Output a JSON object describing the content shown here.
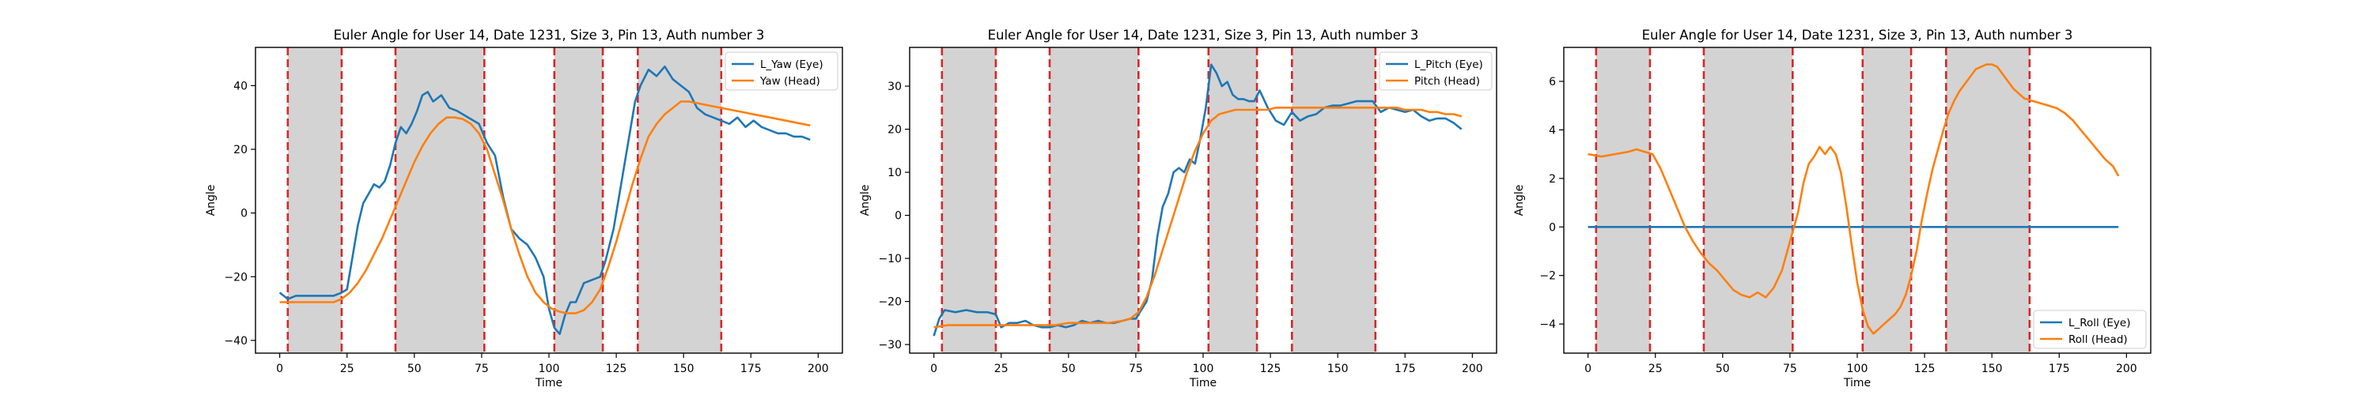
{
  "colors": {
    "eye": "#1f77b4",
    "head": "#ff7f0e",
    "shade": "#d3d3d3",
    "boundary": "#d62728"
  },
  "chart_data": [
    {
      "type": "line",
      "title": "Euler Angle for User 14, Date 1231, Size 3, Pin 13, Auth number 3",
      "xlabel": "Time",
      "ylabel": "Angle",
      "xlim": [
        -9,
        209
      ],
      "ylim": [
        -44,
        52
      ],
      "xticks": [
        0,
        25,
        50,
        75,
        100,
        125,
        150,
        175,
        200
      ],
      "yticks": [
        -40,
        -20,
        0,
        20,
        40
      ],
      "legend_position": "top-right",
      "shaded_intervals": [
        [
          3,
          23
        ],
        [
          43,
          76
        ],
        [
          102,
          120
        ],
        [
          133,
          164
        ]
      ],
      "series": [
        {
          "name": "L_Yaw (Eye)",
          "color": "#1f77b4",
          "x": [
            0,
            3,
            6,
            10,
            15,
            20,
            23,
            25,
            27,
            29,
            31,
            33,
            35,
            37,
            39,
            41,
            43,
            45,
            47,
            49,
            51,
            53,
            55,
            57,
            60,
            63,
            66,
            70,
            74,
            77,
            80,
            83,
            86,
            89,
            92,
            95,
            98,
            100,
            102,
            104,
            106,
            108,
            110,
            113,
            116,
            119,
            121,
            124,
            127,
            130,
            132,
            134,
            137,
            140,
            143,
            146,
            149,
            152,
            155,
            158,
            161,
            164,
            167,
            170,
            173,
            176,
            179,
            182,
            185,
            188,
            191,
            194,
            197
          ],
          "y": [
            -25,
            -27,
            -26,
            -26,
            -26,
            -26,
            -25,
            -24,
            -14,
            -4,
            3,
            6,
            9,
            8,
            10,
            15,
            22,
            27,
            25,
            28,
            32,
            37,
            38,
            35,
            37,
            33,
            32,
            30,
            28,
            22,
            18,
            5,
            -5,
            -8,
            -10,
            -14,
            -20,
            -30,
            -36,
            -38,
            -32,
            -28,
            -28,
            -22,
            -21,
            -20,
            -15,
            -5,
            10,
            25,
            35,
            40,
            45,
            43,
            46,
            42,
            40,
            38,
            33,
            31,
            30,
            29,
            28,
            30,
            27,
            29,
            27,
            26,
            25,
            25,
            24,
            24,
            23
          ]
        },
        {
          "name": "Yaw (Head)",
          "color": "#ff7f0e",
          "x": [
            0,
            5,
            10,
            15,
            20,
            23,
            26,
            29,
            32,
            35,
            38,
            41,
            44,
            47,
            50,
            53,
            56,
            59,
            62,
            65,
            68,
            71,
            74,
            77,
            80,
            83,
            86,
            89,
            92,
            95,
            98,
            101,
            104,
            107,
            110,
            113,
            116,
            119,
            122,
            125,
            128,
            131,
            134,
            137,
            140,
            143,
            146,
            149,
            152,
            155,
            158,
            161,
            164,
            167,
            170,
            173,
            176,
            179,
            182,
            185,
            188,
            191,
            194,
            197
          ],
          "y": [
            -28,
            -28,
            -28,
            -28,
            -28,
            -27,
            -25,
            -22,
            -18,
            -13,
            -8,
            -2,
            4,
            10,
            16,
            21,
            25,
            28,
            30,
            30,
            29.5,
            28,
            25,
            20,
            12,
            4,
            -5,
            -13,
            -20,
            -25,
            -28,
            -30,
            -31,
            -31.5,
            -31.5,
            -30.5,
            -28,
            -24,
            -17,
            -9,
            0,
            9,
            17,
            24,
            28,
            31,
            33,
            35,
            35,
            34.5,
            34,
            33.5,
            33,
            32.5,
            32,
            31.5,
            31,
            30.5,
            30,
            29.5,
            29,
            28.5,
            28,
            27.5
          ]
        }
      ]
    },
    {
      "type": "line",
      "title": "Euler Angle for User 14, Date 1231, Size 3, Pin 13, Auth number 3",
      "xlabel": "Time",
      "ylabel": "Angle",
      "xlim": [
        -9,
        209
      ],
      "ylim": [
        -32,
        39
      ],
      "xticks": [
        0,
        25,
        50,
        75,
        100,
        125,
        150,
        175,
        200
      ],
      "yticks": [
        -30,
        -20,
        -10,
        0,
        10,
        20,
        30
      ],
      "legend_position": "top-right",
      "shaded_intervals": [
        [
          3,
          23
        ],
        [
          43,
          76
        ],
        [
          102,
          120
        ],
        [
          133,
          164
        ]
      ],
      "series": [
        {
          "name": "L_Pitch (Eye)",
          "color": "#1f77b4",
          "x": [
            0,
            2,
            4,
            8,
            12,
            16,
            20,
            23,
            25,
            28,
            31,
            34,
            37,
            40,
            43,
            46,
            49,
            52,
            55,
            58,
            61,
            64,
            67,
            70,
            73,
            75,
            77,
            79,
            81,
            83,
            85,
            87,
            89,
            91,
            93,
            95,
            97,
            99,
            101,
            103,
            105,
            107,
            109,
            111,
            113,
            115,
            117,
            119,
            121,
            124,
            127,
            130,
            133,
            136,
            139,
            142,
            145,
            148,
            151,
            154,
            157,
            160,
            163,
            166,
            169,
            172,
            175,
            178,
            181,
            184,
            187,
            190,
            193,
            196
          ],
          "y": [
            -28,
            -24,
            -22,
            -22.5,
            -22,
            -22.5,
            -22.5,
            -23,
            -26,
            -25,
            -25,
            -24.5,
            -25.5,
            -26,
            -26,
            -25.5,
            -26,
            -25.5,
            -24.5,
            -25,
            -24.5,
            -25,
            -25,
            -24.5,
            -24,
            -24,
            -22,
            -20,
            -15,
            -5,
            2,
            5,
            10,
            11,
            10,
            13,
            12,
            18,
            25,
            35,
            33,
            30,
            31,
            28,
            27,
            27,
            26.5,
            26.5,
            29,
            25,
            22,
            21,
            24,
            22,
            23,
            23.5,
            25,
            25.5,
            25.5,
            26,
            26.5,
            26.5,
            26.5,
            24,
            25,
            24.5,
            24,
            24.5,
            23,
            22,
            22.5,
            22.5,
            21.5,
            20
          ]
        },
        {
          "name": "Pitch (Head)",
          "color": "#ff7f0e",
          "x": [
            0,
            5,
            10,
            15,
            20,
            25,
            30,
            35,
            40,
            45,
            50,
            55,
            60,
            65,
            70,
            73,
            76,
            79,
            82,
            85,
            88,
            91,
            94,
            97,
            100,
            103,
            106,
            109,
            112,
            115,
            118,
            121,
            124,
            127,
            130,
            133,
            136,
            139,
            142,
            145,
            148,
            151,
            154,
            157,
            160,
            163,
            166,
            169,
            172,
            175,
            178,
            181,
            184,
            187,
            190,
            193,
            196
          ],
          "y": [
            -26,
            -25.5,
            -25.5,
            -25.5,
            -25.5,
            -25.5,
            -25.5,
            -25.5,
            -25.5,
            -25.5,
            -25,
            -25,
            -25,
            -25,
            -24.5,
            -24,
            -22.5,
            -19,
            -14,
            -8,
            -2,
            4,
            10,
            15,
            19,
            22,
            23.5,
            24,
            24.5,
            24.5,
            24.5,
            24.5,
            24.5,
            25,
            25,
            25,
            25,
            25,
            25,
            25,
            25,
            25,
            25,
            25,
            25,
            25,
            25,
            25,
            25,
            24.5,
            24.5,
            24.5,
            24,
            24,
            23.5,
            23.5,
            23
          ]
        }
      ]
    },
    {
      "type": "line",
      "title": "Euler Angle for User 14, Date 1231, Size 3, Pin 13, Auth number 3",
      "xlabel": "Time",
      "ylabel": "Angle",
      "xlim": [
        -9,
        209
      ],
      "ylim": [
        -5.2,
        7.4
      ],
      "xticks": [
        0,
        25,
        50,
        75,
        100,
        125,
        150,
        175,
        200
      ],
      "yticks": [
        -4,
        -2,
        0,
        2,
        4,
        6
      ],
      "legend_position": "bottom-right",
      "shaded_intervals": [
        [
          3,
          23
        ],
        [
          43,
          76
        ],
        [
          102,
          120
        ],
        [
          133,
          164
        ]
      ],
      "series": [
        {
          "name": "L_Roll (Eye)",
          "color": "#1f77b4",
          "x": [
            0,
            197
          ],
          "y": [
            0,
            0
          ]
        },
        {
          "name": "Roll (Head)",
          "color": "#ff7f0e",
          "x": [
            0,
            5,
            10,
            15,
            18,
            21,
            24,
            27,
            30,
            33,
            36,
            39,
            42,
            45,
            48,
            51,
            54,
            57,
            60,
            63,
            66,
            69,
            72,
            75,
            78,
            80,
            82,
            84,
            86,
            88,
            90,
            92,
            94,
            96,
            98,
            100,
            102,
            104,
            106,
            108,
            110,
            112,
            114,
            116,
            118,
            120,
            122,
            124,
            126,
            128,
            130,
            132,
            134,
            136,
            138,
            140,
            142,
            144,
            146,
            148,
            150,
            152,
            154,
            156,
            158,
            160,
            162,
            165,
            168,
            171,
            174,
            177,
            180,
            183,
            186,
            189,
            192,
            195,
            197
          ],
          "y": [
            3.0,
            2.9,
            3.0,
            3.1,
            3.2,
            3.1,
            3.0,
            2.4,
            1.6,
            0.8,
            0.0,
            -0.6,
            -1.1,
            -1.5,
            -1.8,
            -2.2,
            -2.6,
            -2.8,
            -2.9,
            -2.7,
            -2.9,
            -2.5,
            -1.8,
            -0.6,
            0.6,
            1.8,
            2.6,
            2.9,
            3.3,
            3.0,
            3.3,
            3.0,
            2.2,
            0.8,
            -0.8,
            -2.3,
            -3.4,
            -4.1,
            -4.4,
            -4.2,
            -4.0,
            -3.8,
            -3.6,
            -3.3,
            -2.8,
            -2.0,
            -1.0,
            0.3,
            1.4,
            2.4,
            3.2,
            4.0,
            4.7,
            5.2,
            5.6,
            5.9,
            6.2,
            6.5,
            6.6,
            6.7,
            6.7,
            6.6,
            6.3,
            6.0,
            5.7,
            5.5,
            5.3,
            5.2,
            5.1,
            5.0,
            4.9,
            4.7,
            4.4,
            4.0,
            3.6,
            3.2,
            2.8,
            2.5,
            2.1
          ]
        }
      ]
    }
  ]
}
